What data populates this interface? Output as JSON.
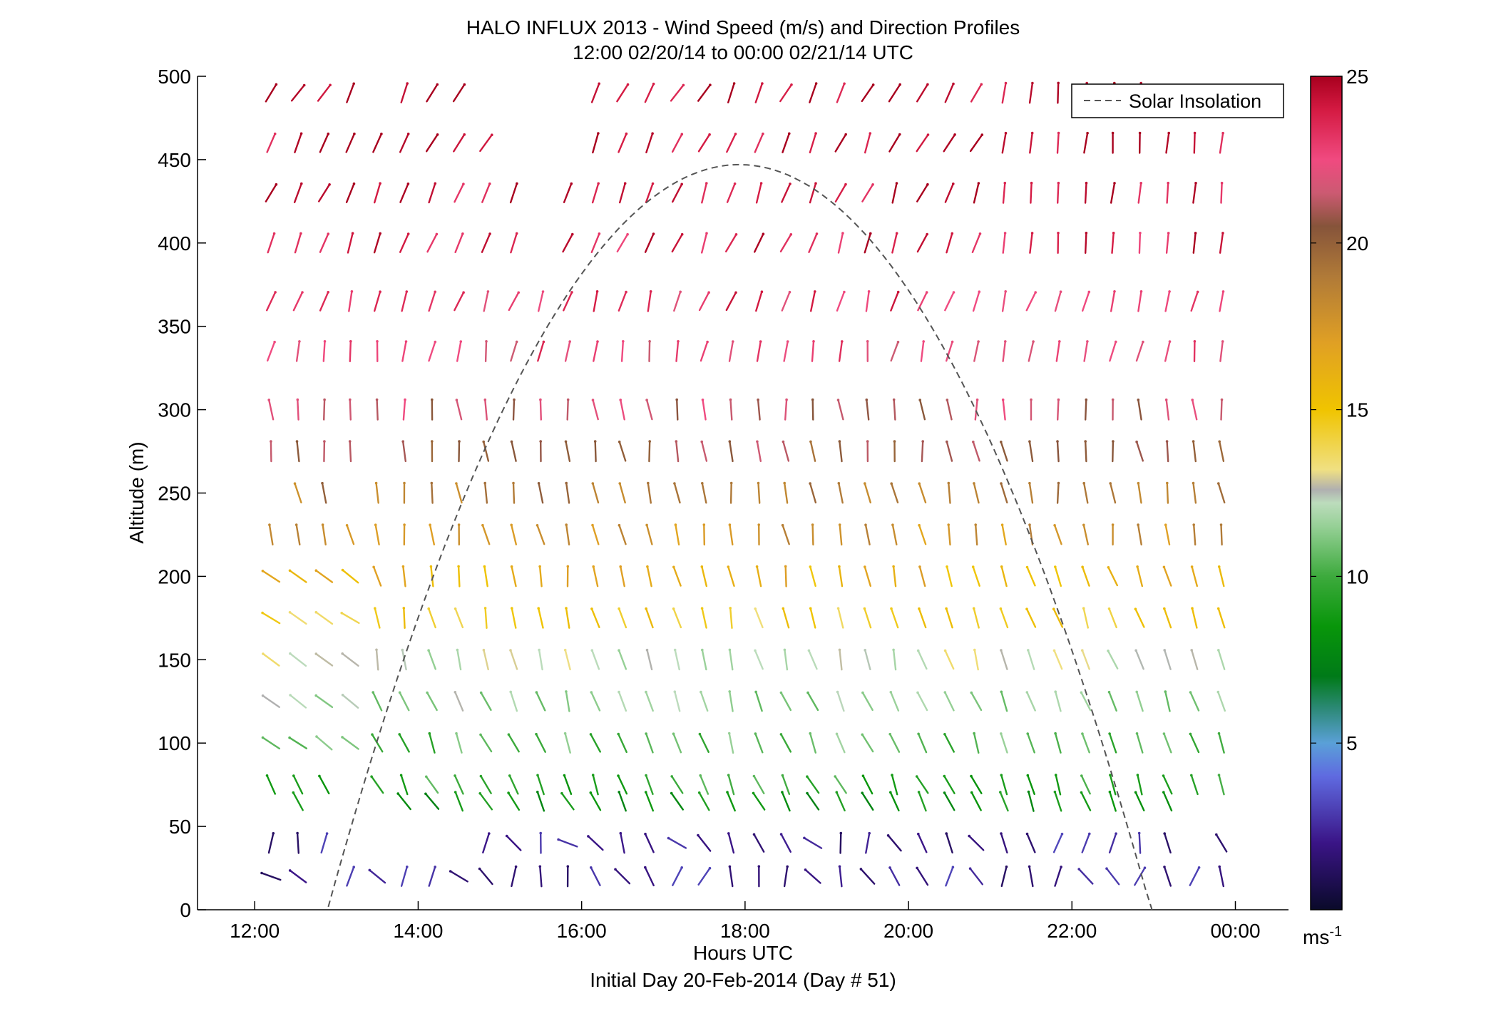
{
  "chart_data": {
    "type": "wind-barb-profile",
    "title": "HALO INFLUX 2013 - Wind Speed (m/s) and Direction Profiles",
    "subtitle": "12:00 02/20/14 to 00:00 02/21/14  UTC",
    "xlabel": "Hours UTC",
    "xlabel2": "Initial Day 20-Feb-2014 (Day # 51)",
    "ylabel": "Altitude (m)",
    "xlim": [
      11.3,
      24.65
    ],
    "ylim": [
      0,
      500
    ],
    "x_ticks": [
      12,
      14,
      16,
      18,
      20,
      22,
      24
    ],
    "x_tick_labels": [
      "12:00",
      "14:00",
      "16:00",
      "18:00",
      "20:00",
      "22:00",
      "00:00"
    ],
    "y_ticks": [
      0,
      50,
      100,
      150,
      200,
      250,
      300,
      350,
      400,
      450,
      500
    ],
    "y_tick_labels": [
      "0",
      "50",
      "100",
      "150",
      "200",
      "250",
      "300",
      "350",
      "400",
      "450",
      "500"
    ],
    "legend": {
      "entries": [
        "Solar Insolation"
      ],
      "placement": "top-right"
    },
    "solar_insolation": {
      "style": "dashed",
      "color": "#555555",
      "start_hour": 12.9,
      "peak_hour": 17.93,
      "end_hour": 22.98,
      "peak_altitude": 447
    },
    "colorbar": {
      "range": [
        0,
        25
      ],
      "ticks": [
        5,
        10,
        15,
        20,
        25
      ],
      "tick_labels": [
        "5",
        "10",
        "15",
        "20",
        "25"
      ],
      "unit_base": "ms",
      "unit_exp": "-1"
    },
    "colormap": [
      [
        0,
        "#0a0a2a"
      ],
      [
        2,
        "#3a1486"
      ],
      [
        4,
        "#5f6ae0"
      ],
      [
        5,
        "#5aa0d8"
      ],
      [
        6,
        "#2e8a7a"
      ],
      [
        7,
        "#007a18"
      ],
      [
        8.5,
        "#08960a"
      ],
      [
        10,
        "#3daa3d"
      ],
      [
        11.5,
        "#96d096"
      ],
      [
        12.2,
        "#bcdcbc"
      ],
      [
        12.6,
        "#b0b0b0"
      ],
      [
        13.2,
        "#f0e082"
      ],
      [
        15,
        "#f0c400"
      ],
      [
        17,
        "#e0a024"
      ],
      [
        19,
        "#b07a38"
      ],
      [
        20.5,
        "#86543a"
      ],
      [
        21.5,
        "#cc5a72"
      ],
      [
        22.5,
        "#f04a80"
      ],
      [
        24,
        "#d41a42"
      ],
      [
        25,
        "#a8001e"
      ]
    ],
    "profile_hours": [
      12.2,
      12.53,
      12.85,
      13.17,
      13.5,
      13.83,
      14.17,
      14.5,
      14.83,
      15.17,
      15.5,
      15.83,
      16.17,
      16.5,
      16.83,
      17.17,
      17.5,
      17.83,
      18.17,
      18.5,
      18.83,
      19.17,
      19.5,
      19.83,
      20.17,
      20.5,
      20.83,
      21.17,
      21.5,
      21.83,
      22.17,
      22.5,
      22.83,
      23.17,
      23.5,
      23.83
    ],
    "levels": [
      20,
      40,
      65,
      75,
      100,
      125,
      150,
      175,
      200,
      225,
      250,
      275,
      300,
      335,
      365,
      400,
      430,
      460,
      490
    ],
    "level_wind": [
      {
        "altitude": 20,
        "speed": 2.0,
        "direction_deg": 310
      },
      {
        "altitude": 40,
        "speed": 2.8,
        "direction_deg": 320
      },
      {
        "altitude": 65,
        "speed": 8.5,
        "direction_deg": 330
      },
      {
        "altitude": 75,
        "speed": 9.5,
        "direction_deg": 335
      },
      {
        "altitude": 100,
        "speed": 10.5,
        "direction_deg": 338
      },
      {
        "altitude": 125,
        "speed": 11.5,
        "direction_deg": 340
      },
      {
        "altitude": 150,
        "speed": 12.5,
        "direction_deg": 345
      },
      {
        "altitude": 175,
        "speed": 14.5,
        "direction_deg": 348
      },
      {
        "altitude": 200,
        "speed": 16.0,
        "direction_deg": 350
      },
      {
        "altitude": 225,
        "speed": 17.8,
        "direction_deg": 350
      },
      {
        "altitude": 250,
        "speed": 19.0,
        "direction_deg": 352
      },
      {
        "altitude": 275,
        "speed": 20.5,
        "direction_deg": 352
      },
      {
        "altitude": 300,
        "speed": 21.5,
        "direction_deg": 355
      },
      {
        "altitude": 335,
        "speed": 22.5,
        "direction_deg": 10
      },
      {
        "altitude": 365,
        "speed": 23.2,
        "direction_deg": 18
      },
      {
        "altitude": 400,
        "speed": 23.8,
        "direction_deg": 20
      },
      {
        "altitude": 430,
        "speed": 24.2,
        "direction_deg": 22
      },
      {
        "altitude": 460,
        "speed": 24.5,
        "direction_deg": 25
      },
      {
        "altitude": 490,
        "speed": 24.7,
        "direction_deg": 28
      }
    ],
    "missing_gaps": [
      {
        "altitude": 490,
        "from_hour": 13.3,
        "to_hour": 13.6
      },
      {
        "altitude": 490,
        "from_hour": 14.7,
        "to_hour": 16.0
      },
      {
        "altitude": 490,
        "from_hour": 23.1,
        "to_hour": 24.0
      },
      {
        "altitude": 460,
        "from_hour": 15.1,
        "to_hour": 16.0
      },
      {
        "altitude": 430,
        "from_hour": 15.3,
        "to_hour": 15.6
      },
      {
        "altitude": 400,
        "from_hour": 15.3,
        "to_hour": 15.6
      },
      {
        "altitude": 275,
        "from_hour": 13.3,
        "to_hour": 13.8
      },
      {
        "altitude": 250,
        "from_hour": 12.1,
        "to_hour": 12.4
      },
      {
        "altitude": 250,
        "from_hour": 13.0,
        "to_hour": 13.4
      },
      {
        "altitude": 300,
        "from_hour": 13.3,
        "to_hour": 13.4
      },
      {
        "altitude": 75,
        "from_hour": 13.0,
        "to_hour": 13.3
      },
      {
        "altitude": 65,
        "from_hour": 12.1,
        "to_hour": 12.4
      },
      {
        "altitude": 65,
        "from_hour": 12.7,
        "to_hour": 13.7
      },
      {
        "altitude": 65,
        "from_hour": 23.5,
        "to_hour": 24.0
      },
      {
        "altitude": 40,
        "from_hour": 13.0,
        "to_hour": 14.6
      },
      {
        "altitude": 40,
        "from_hour": 23.4,
        "to_hour": 23.6
      },
      {
        "altitude": 20,
        "from_hour": 12.8,
        "to_hour": 13.0
      },
      {
        "altitude": 20,
        "from_hour": 23.9,
        "to_hour": 24.0
      }
    ]
  }
}
